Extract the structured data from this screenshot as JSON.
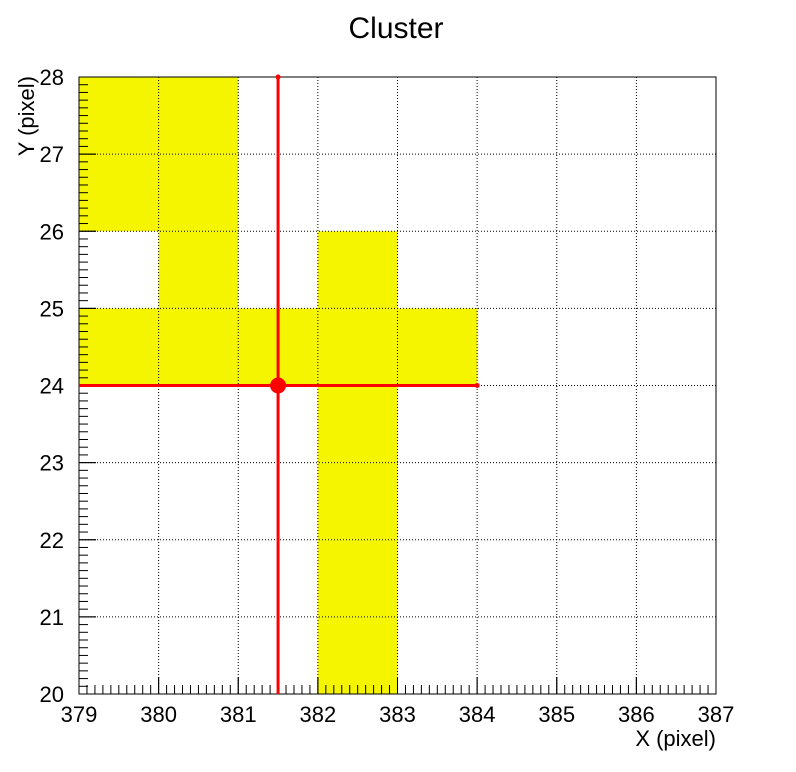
{
  "chart_data": {
    "type": "heatmap",
    "title": "Cluster",
    "xlabel": "X (pixel)",
    "ylabel": "Y (pixel)",
    "xlim": [
      379,
      387
    ],
    "ylim": [
      20,
      28
    ],
    "x_ticks": [
      "379",
      "380",
      "381",
      "382",
      "383",
      "384",
      "385",
      "386",
      "387"
    ],
    "y_ticks": [
      "20",
      "21",
      "22",
      "23",
      "24",
      "25",
      "26",
      "27",
      "28"
    ],
    "grid": true,
    "cell_color": "#f5f500",
    "cells": [
      {
        "x": 379,
        "y": 24
      },
      {
        "x": 380,
        "y": 24
      },
      {
        "x": 381,
        "y": 24
      },
      {
        "x": 383,
        "y": 24
      },
      {
        "x": 380,
        "y": 25
      },
      {
        "x": 379,
        "y": 26
      },
      {
        "x": 380,
        "y": 26
      },
      {
        "x": 379,
        "y": 27
      },
      {
        "x": 380,
        "y": 27
      },
      {
        "x": 382,
        "y": 20
      },
      {
        "x": 382,
        "y": 21
      },
      {
        "x": 382,
        "y": 22
      },
      {
        "x": 382,
        "y": 23
      },
      {
        "x": 382,
        "y": 24
      },
      {
        "x": 382,
        "y": 25
      }
    ],
    "marker": {
      "x": 381.5,
      "y": 24,
      "x_err": [
        379,
        384
      ],
      "y_err": [
        20,
        28
      ],
      "color": "#ff0000"
    }
  }
}
